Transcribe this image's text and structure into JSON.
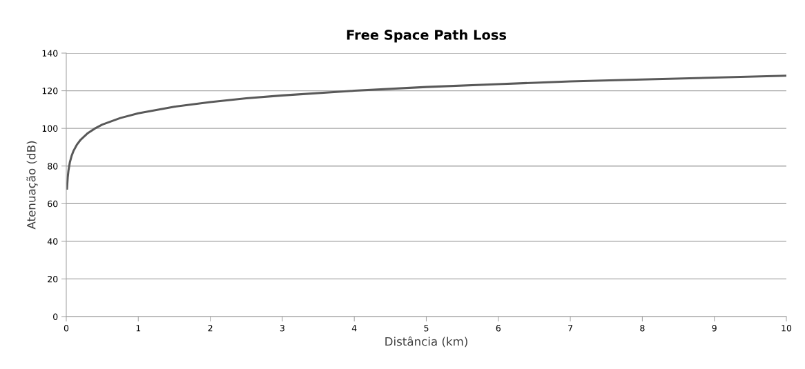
{
  "chart_data": {
    "type": "line",
    "title": "Free Space Path Loss",
    "xlabel": "Distância (km)",
    "ylabel": "Atenuação (dB)",
    "x": [
      0.01,
      0.02,
      0.03,
      0.05,
      0.075,
      0.1,
      0.15,
      0.2,
      0.3,
      0.4,
      0.5,
      0.75,
      1,
      1.5,
      2,
      2.5,
      3,
      4,
      5,
      6,
      7,
      8,
      9,
      10
    ],
    "series": [
      {
        "color": "#595959",
        "values": [
          68,
          74,
          77.5,
          82,
          85.5,
          88,
          91.5,
          94,
          97.5,
          100,
          102,
          105.5,
          108,
          111.5,
          114,
          116,
          117.5,
          120,
          122,
          123.5,
          125,
          126,
          127,
          128
        ]
      }
    ],
    "xlim": [
      0,
      10
    ],
    "xticks": [
      0,
      1,
      2,
      3,
      4,
      5,
      6,
      7,
      8,
      9,
      10
    ],
    "ylim": [
      0,
      140
    ],
    "yticks": [
      0,
      20,
      40,
      60,
      80,
      100,
      120,
      140
    ],
    "grid": "y",
    "marker": "none",
    "line_style": "solid"
  }
}
